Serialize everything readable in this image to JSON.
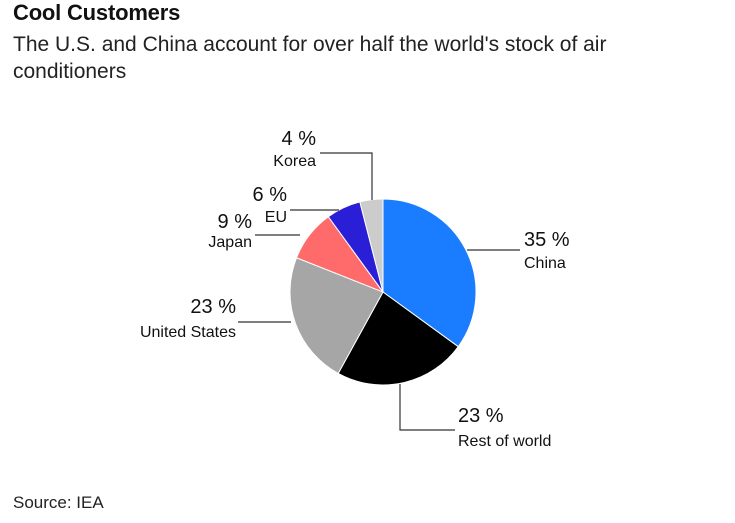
{
  "header": {
    "title": "Cool Customers",
    "subtitle": "The U.S. and China account for over half the world's stock of air conditioners"
  },
  "source": "Source: IEA",
  "chart_data": {
    "type": "pie",
    "title": "Cool Customers",
    "subtitle": "The U.S. and China account for over half the world's stock of air conditioners",
    "slices": [
      {
        "label": "China",
        "value": 35,
        "value_label": "35 %",
        "color": "#1a7cff"
      },
      {
        "label": "Rest of world",
        "value": 23,
        "value_label": "23 %",
        "color": "#000000"
      },
      {
        "label": "United States",
        "value": 23,
        "value_label": "23 %",
        "color": "#a6a6a6"
      },
      {
        "label": "Japan",
        "value": 9,
        "value_label": "9 %",
        "color": "#ff6b6b"
      },
      {
        "label": "EU",
        "value": 6,
        "value_label": "6 %",
        "color": "#2a1fd6"
      },
      {
        "label": "Korea",
        "value": 4,
        "value_label": "4 %",
        "color": "#cccccc"
      }
    ]
  }
}
